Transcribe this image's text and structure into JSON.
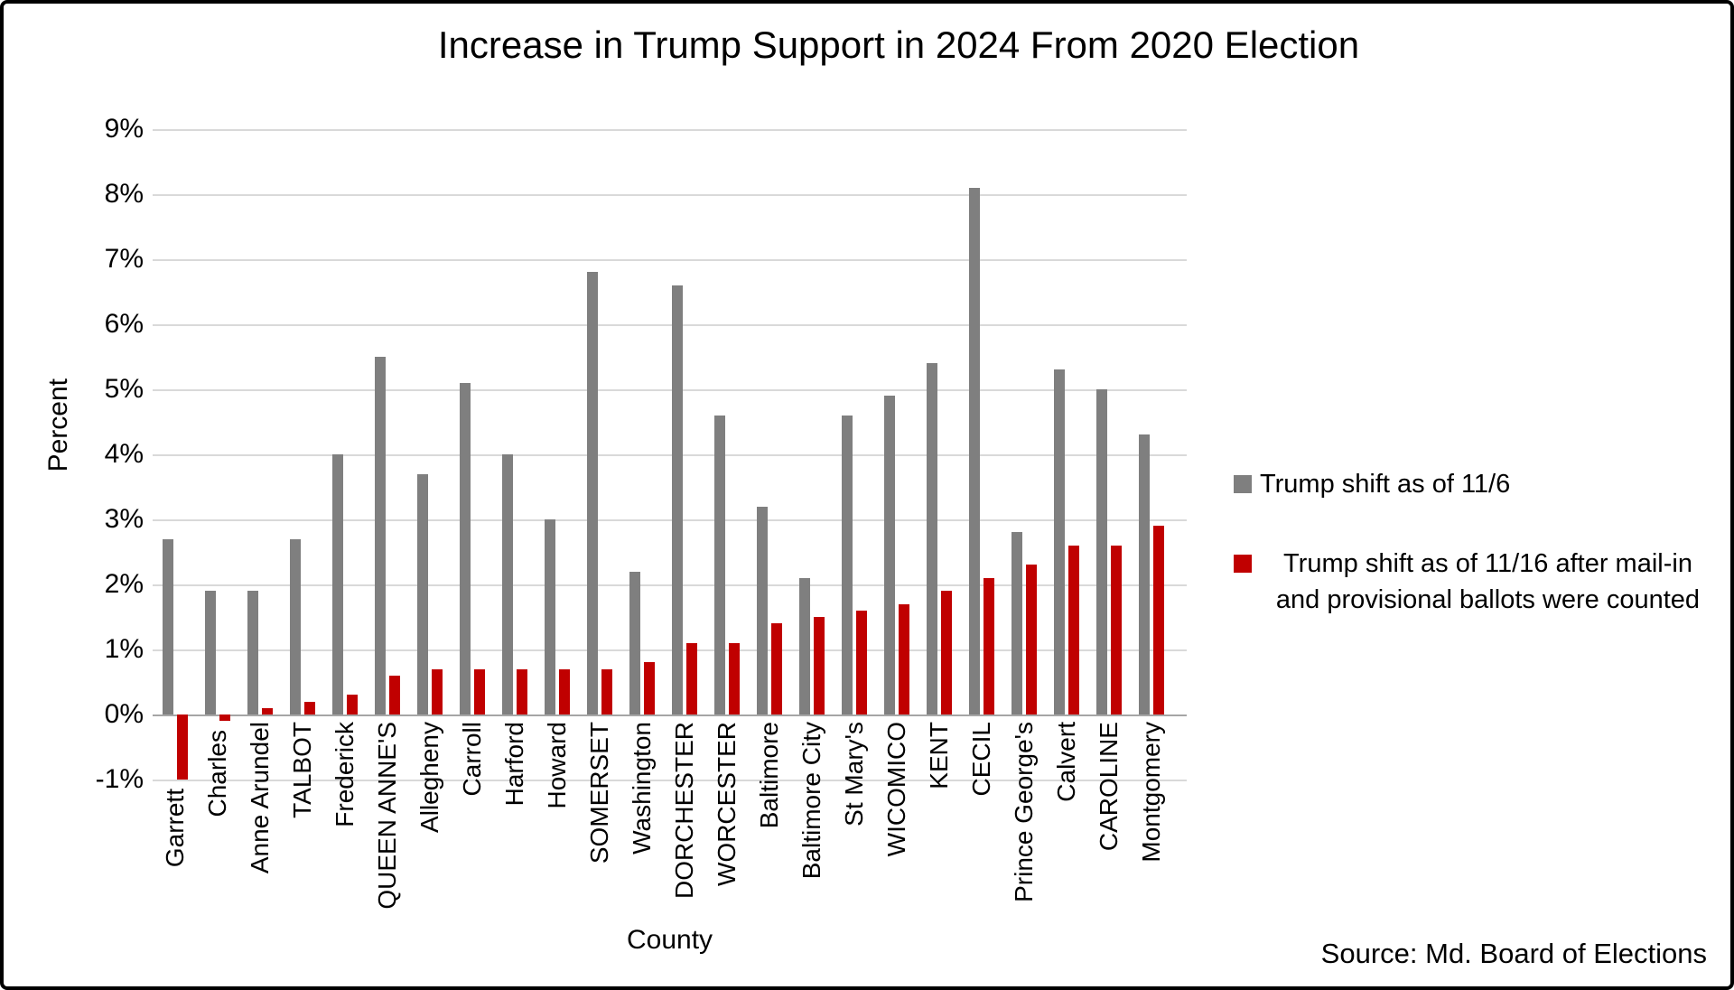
{
  "source_label": "Source: Md. Board of Elections",
  "chart_data": {
    "type": "bar",
    "title": "Increase in Trump Support in 2024 From 2020 Election",
    "xlabel": "County",
    "ylabel": "Percent",
    "ylim": [
      -1,
      9
    ],
    "yticks": [
      9,
      8,
      7,
      6,
      5,
      4,
      3,
      2,
      1,
      0,
      -1
    ],
    "ytick_suffix": "%",
    "grid": true,
    "legend_position": "right",
    "gridline_color": "#D9D9D9",
    "axis_line_color": "#A6A6A6",
    "categories": [
      "Garrett",
      "Charles",
      "Anne Arundel",
      "TALBOT",
      "Frederick",
      "QUEEN ANNE'S",
      "Allegheny",
      "Carroll",
      "Harford",
      "Howard",
      "SOMERSET",
      "Washington",
      "DORCHESTER",
      "WORCESTER",
      "Baltimore",
      "Baltimore City",
      "St Mary's",
      "WICOMICO",
      "KENT",
      "CECIL",
      "Prince George's",
      "Calvert",
      "CAROLINE",
      "Montgomery"
    ],
    "series": [
      {
        "name": "Trump shift as of 11/6",
        "color": "#7F7F7F",
        "values": [
          2.7,
          1.9,
          1.9,
          2.7,
          4.0,
          5.5,
          3.7,
          5.1,
          4.0,
          3.0,
          6.8,
          2.2,
          6.6,
          4.6,
          3.2,
          2.1,
          4.6,
          4.9,
          5.4,
          8.1,
          2.8,
          5.3,
          5.0,
          4.3
        ]
      },
      {
        "name": "Trump shift as of 11/16 after mail-in and provisional ballots were counted",
        "color": "#C00000",
        "values": [
          -1.0,
          -0.1,
          0.1,
          0.2,
          0.3,
          0.6,
          0.7,
          0.7,
          0.7,
          0.7,
          0.7,
          0.8,
          1.1,
          1.1,
          1.4,
          1.5,
          1.6,
          1.7,
          1.9,
          2.1,
          2.3,
          2.6,
          2.6,
          2.9
        ]
      }
    ]
  }
}
